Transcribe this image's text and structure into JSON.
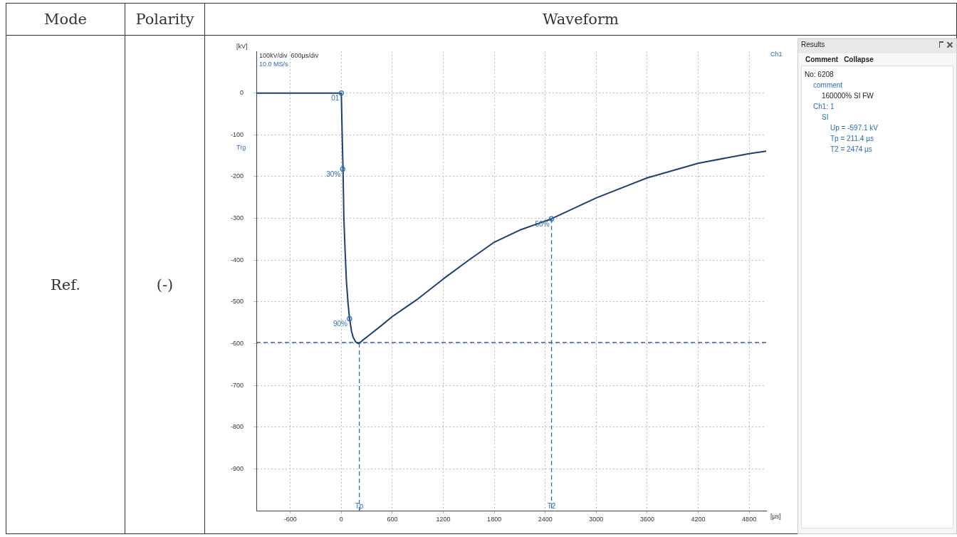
{
  "chart_data": {
    "type": "line",
    "xlabel": "[µs]",
    "ylabel": "[kV]",
    "xlim": [
      -1000,
      5000
    ],
    "ylim": [
      -1000,
      100
    ],
    "xticks": [
      -600,
      0,
      600,
      1200,
      1800,
      2400,
      3000,
      3600,
      4200,
      4800
    ],
    "yticks": [
      0,
      -100,
      -200,
      -300,
      -400,
      -500,
      -600,
      -700,
      -800,
      -900
    ],
    "grid": true,
    "marker": "none",
    "line_style": "solid",
    "series": [
      {
        "color": "#1d3f73",
        "x": [
          -1000,
          -500,
          0,
          10,
          20,
          30,
          45,
          60,
          80,
          97,
          120,
          140,
          170,
          205,
          250,
          300,
          450,
          600,
          750,
          900,
          1200,
          1500,
          1800,
          2100,
          2474,
          3000,
          3600,
          4200,
          4800,
          5000
        ],
        "values": [
          0,
          0,
          0,
          -100,
          -182,
          -300,
          -380,
          -450,
          -505,
          -540,
          -570,
          -585,
          -596,
          -600,
          -592,
          -584,
          -560,
          -535,
          -514,
          -493,
          -445,
          -400,
          -357,
          -328,
          -301,
          -251,
          -203,
          -168,
          -145,
          -139
        ]
      }
    ],
    "ref_lines": [
      {
        "axis": "y",
        "value": -597,
        "color": "#1d3f73",
        "line_style": "dashed"
      },
      {
        "axis": "x",
        "value": 211.4,
        "label": "Tp",
        "color": "#2a6db5",
        "line_style": "dashed"
      },
      {
        "axis": "x",
        "value": 2474,
        "label": "T2",
        "color": "#2a6db5",
        "line_style": "dashed"
      }
    ],
    "annotations": [
      "Mode",
      "Polarity",
      "Waveform",
      "Ref.",
      "(-)",
      "100kV/div  600µs/div",
      "10.0 MS/s",
      "Trg",
      "Ch1",
      "Results",
      "Comment",
      "Collapse",
      "No: 6208",
      "comment",
      "160000% SI FW",
      "Ch1: 1",
      "SI",
      "Up = -597.1 kV",
      "Tp = 211.4 µs",
      "T2 = 2474 µs",
      {
        "text": "01",
        "x": 0,
        "y": 0
      },
      {
        "text": "30%",
        "x": 16,
        "y": -182
      },
      {
        "text": "90%",
        "x": 97,
        "y": -540
      },
      {
        "text": "50%",
        "x": 2474,
        "y": -301
      }
    ]
  }
}
